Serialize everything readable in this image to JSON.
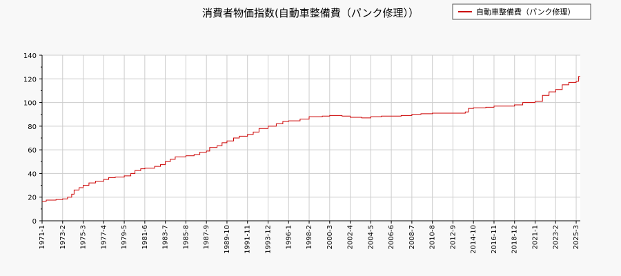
{
  "chart_data": {
    "type": "line",
    "title": "消費者物価指数(自動車整備費（パンク修理））",
    "xlabel": "",
    "ylabel": "",
    "ylim": [
      0,
      140
    ],
    "yticks": [
      0,
      20,
      40,
      60,
      80,
      100,
      120,
      140
    ],
    "xlim": [
      "1971-01",
      "2025-08"
    ],
    "xticks": [
      "1971-1",
      "1973-2",
      "1975-3",
      "1977-4",
      "1979-5",
      "1981-6",
      "1983-7",
      "1985-8",
      "1987-9",
      "1989-10",
      "1991-11",
      "1993-12",
      "1996-1",
      "1998-2",
      "2000-3",
      "2002-4",
      "2004-5",
      "2006-6",
      "2008-7",
      "2010-8",
      "2012-9",
      "2014-10",
      "2016-11",
      "2018-12",
      "2021-1",
      "2023-2",
      "2025-3"
    ],
    "grid": true,
    "legend_position": "top-right",
    "series": [
      {
        "name": "自動車整備費（パンク修理）",
        "color": "#cc0000",
        "points": [
          [
            "1971-01",
            16.5
          ],
          [
            "1971-06",
            17.5
          ],
          [
            "1972-06",
            18.0
          ],
          [
            "1973-02",
            18.5
          ],
          [
            "1973-08",
            20.0
          ],
          [
            "1974-01",
            22.5
          ],
          [
            "1974-04",
            26.0
          ],
          [
            "1974-10",
            28.0
          ],
          [
            "1975-03",
            30.0
          ],
          [
            "1975-10",
            32.0
          ],
          [
            "1976-06",
            33.5
          ],
          [
            "1977-04",
            35.0
          ],
          [
            "1977-10",
            36.5
          ],
          [
            "1978-06",
            37.0
          ],
          [
            "1979-05",
            38.0
          ],
          [
            "1980-01",
            40.0
          ],
          [
            "1980-06",
            42.5
          ],
          [
            "1981-01",
            44.0
          ],
          [
            "1981-06",
            44.5
          ],
          [
            "1982-06",
            46.0
          ],
          [
            "1983-01",
            47.5
          ],
          [
            "1983-07",
            50.0
          ],
          [
            "1984-01",
            52.0
          ],
          [
            "1984-07",
            54.0
          ],
          [
            "1985-08",
            55.0
          ],
          [
            "1986-06",
            56.0
          ],
          [
            "1987-01",
            58.0
          ],
          [
            "1987-09",
            59.0
          ],
          [
            "1988-01",
            62.0
          ],
          [
            "1988-10",
            63.5
          ],
          [
            "1989-04",
            66.0
          ],
          [
            "1989-10",
            67.5
          ],
          [
            "1990-06",
            70.0
          ],
          [
            "1991-01",
            71.5
          ],
          [
            "1991-11",
            73.0
          ],
          [
            "1992-06",
            75.0
          ],
          [
            "1993-01",
            78.0
          ],
          [
            "1993-12",
            80.0
          ],
          [
            "1994-10",
            82.0
          ],
          [
            "1995-06",
            84.0
          ],
          [
            "1996-01",
            84.5
          ],
          [
            "1997-03",
            86.0
          ],
          [
            "1998-02",
            88.0
          ],
          [
            "1999-06",
            88.5
          ],
          [
            "2000-03",
            89.0
          ],
          [
            "2001-06",
            88.5
          ],
          [
            "2002-04",
            87.5
          ],
          [
            "2003-06",
            87.0
          ],
          [
            "2004-05",
            88.0
          ],
          [
            "2005-06",
            88.5
          ],
          [
            "2006-06",
            88.5
          ],
          [
            "2007-06",
            89.0
          ],
          [
            "2008-07",
            90.0
          ],
          [
            "2009-06",
            90.5
          ],
          [
            "2010-08",
            91.0
          ],
          [
            "2012-09",
            91.0
          ],
          [
            "2013-12",
            92.0
          ],
          [
            "2014-04",
            95.0
          ],
          [
            "2014-10",
            95.5
          ],
          [
            "2016-01",
            96.0
          ],
          [
            "2016-11",
            97.0
          ],
          [
            "2018-12",
            98.0
          ],
          [
            "2019-10",
            100.0
          ],
          [
            "2021-01",
            101.0
          ],
          [
            "2021-10",
            106.0
          ],
          [
            "2022-06",
            109.0
          ],
          [
            "2023-02",
            111.0
          ],
          [
            "2023-10",
            115.0
          ],
          [
            "2024-06",
            117.0
          ],
          [
            "2025-03",
            118.0
          ],
          [
            "2025-06",
            122.0
          ],
          [
            "2025-08",
            122.0
          ]
        ]
      }
    ]
  }
}
